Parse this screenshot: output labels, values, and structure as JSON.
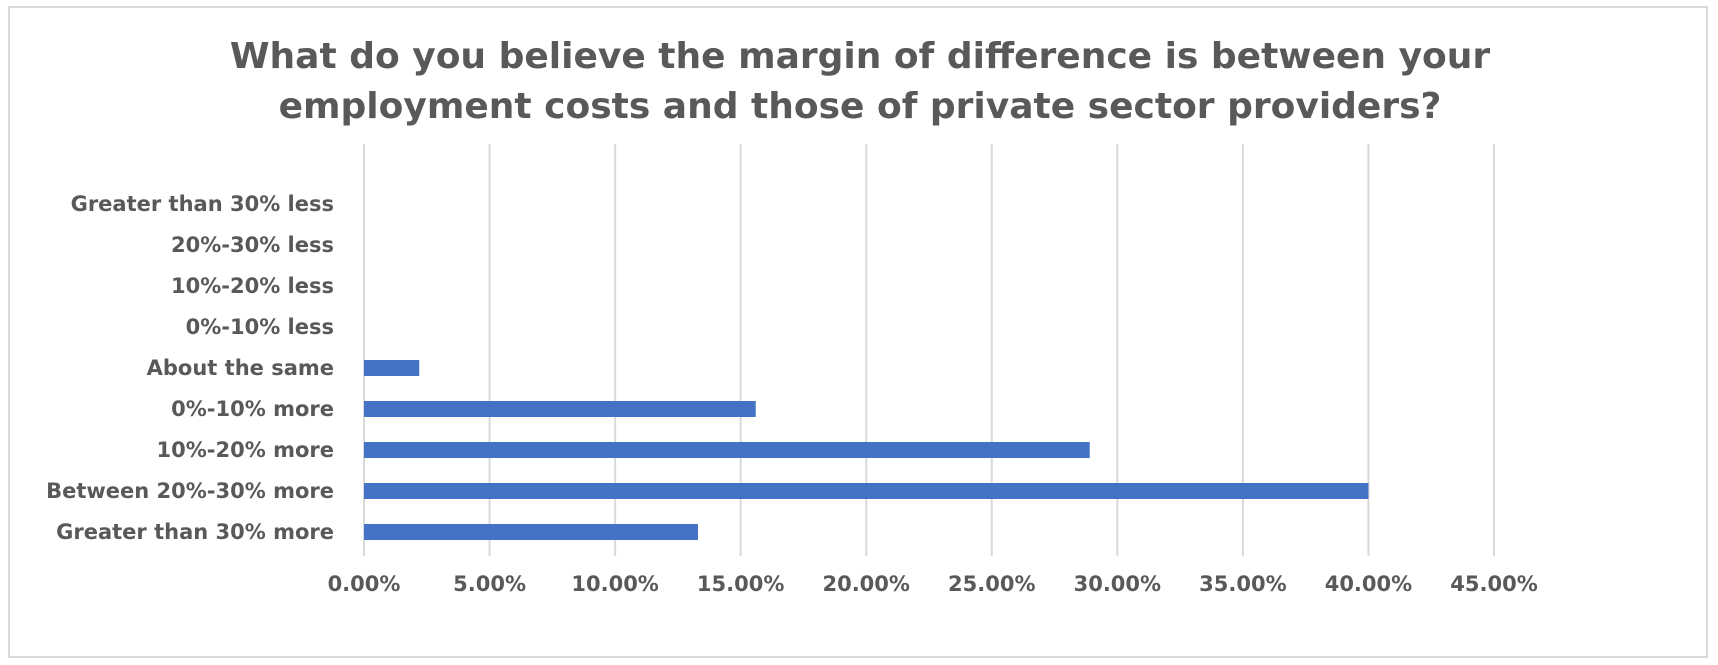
{
  "chart_data": {
    "type": "bar",
    "orientation": "horizontal",
    "title": "What do you believe the margin of difference is between your\nemployment costs and those of private sector providers?",
    "categories": [
      "Greater than 30% less",
      "20%-30% less",
      "10%-20% less",
      "0%-10% less",
      "About the same",
      "0%-10% more",
      "10%-20% more",
      "Between 20%-30% more",
      "Greater than 30% more"
    ],
    "values": [
      0,
      0,
      0,
      0,
      0.022,
      0.156,
      0.289,
      0.4,
      0.133
    ],
    "xlim": [
      0,
      0.45
    ],
    "xticks": [
      0,
      0.05,
      0.1,
      0.15,
      0.2,
      0.25,
      0.3,
      0.35,
      0.4,
      0.45
    ],
    "xtick_labels": [
      "0.00%",
      "5.00%",
      "10.00%",
      "15.00%",
      "20.00%",
      "25.00%",
      "30.00%",
      "35.00%",
      "40.00%",
      "45.00%"
    ],
    "grid": "vertical",
    "legend": "none",
    "bar_color": "#4472c4",
    "grid_color": "#d9d9d9"
  }
}
